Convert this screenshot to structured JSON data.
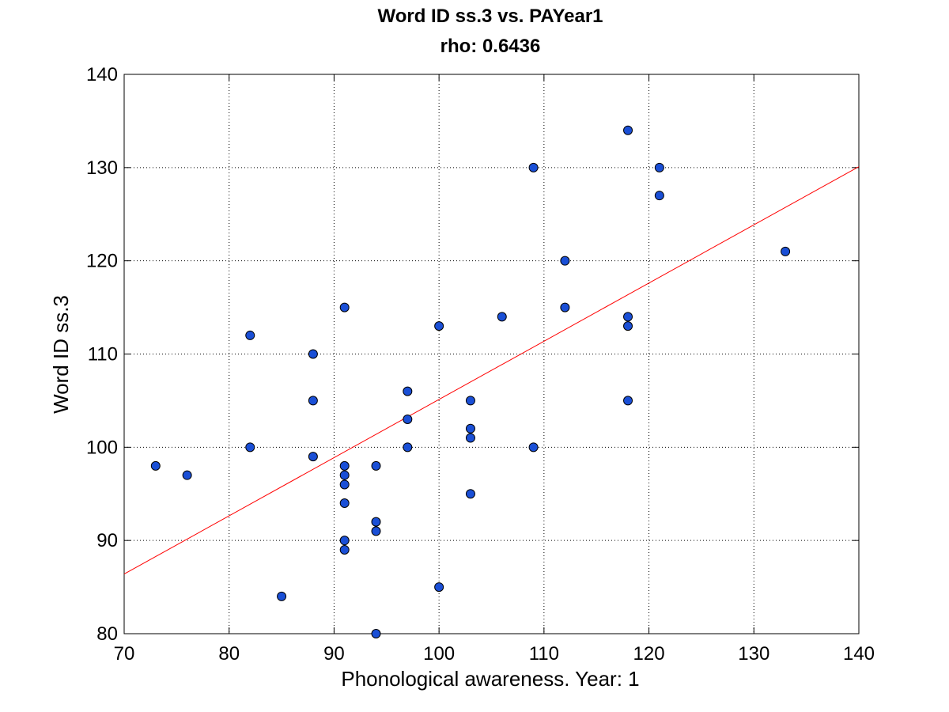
{
  "chart_data": {
    "type": "scatter",
    "title": "Word ID ss.3 vs. PAYear1",
    "subtitle": "rho: 0.6436",
    "xlabel": "Phonological awareness. Year: 1",
    "ylabel": "Word ID ss.3",
    "xlim": [
      70,
      140
    ],
    "ylim": [
      80,
      140
    ],
    "xticks": [
      "70",
      "80",
      "90",
      "100",
      "110",
      "120",
      "130",
      "140"
    ],
    "yticks": [
      "80",
      "90",
      "100",
      "110",
      "120",
      "130",
      "140"
    ],
    "grid": true,
    "marker_color": "#1a4fd6",
    "marker_edge_color": "#000000",
    "fit_line_color": "#ff0000",
    "points": [
      {
        "x": 73,
        "y": 98
      },
      {
        "x": 76,
        "y": 97
      },
      {
        "x": 82,
        "y": 112
      },
      {
        "x": 82,
        "y": 100
      },
      {
        "x": 85,
        "y": 84
      },
      {
        "x": 88,
        "y": 110
      },
      {
        "x": 88,
        "y": 105
      },
      {
        "x": 88,
        "y": 99
      },
      {
        "x": 91,
        "y": 115
      },
      {
        "x": 91,
        "y": 98
      },
      {
        "x": 91,
        "y": 97
      },
      {
        "x": 91,
        "y": 96
      },
      {
        "x": 91,
        "y": 94
      },
      {
        "x": 91,
        "y": 90
      },
      {
        "x": 91,
        "y": 89
      },
      {
        "x": 94,
        "y": 98
      },
      {
        "x": 94,
        "y": 92
      },
      {
        "x": 94,
        "y": 91
      },
      {
        "x": 94,
        "y": 80
      },
      {
        "x": 97,
        "y": 106
      },
      {
        "x": 97,
        "y": 103
      },
      {
        "x": 97,
        "y": 100
      },
      {
        "x": 100,
        "y": 113
      },
      {
        "x": 100,
        "y": 85
      },
      {
        "x": 103,
        "y": 105
      },
      {
        "x": 103,
        "y": 102
      },
      {
        "x": 103,
        "y": 101
      },
      {
        "x": 103,
        "y": 95
      },
      {
        "x": 106,
        "y": 114
      },
      {
        "x": 109,
        "y": 130
      },
      {
        "x": 109,
        "y": 100
      },
      {
        "x": 112,
        "y": 120
      },
      {
        "x": 112,
        "y": 115
      },
      {
        "x": 118,
        "y": 134
      },
      {
        "x": 118,
        "y": 114
      },
      {
        "x": 118,
        "y": 113
      },
      {
        "x": 118,
        "y": 105
      },
      {
        "x": 121,
        "y": 130
      },
      {
        "x": 121,
        "y": 127
      },
      {
        "x": 133,
        "y": 121
      }
    ],
    "fit_line": {
      "x": [
        70,
        140
      ],
      "y": [
        86.4,
        130.1
      ]
    }
  }
}
